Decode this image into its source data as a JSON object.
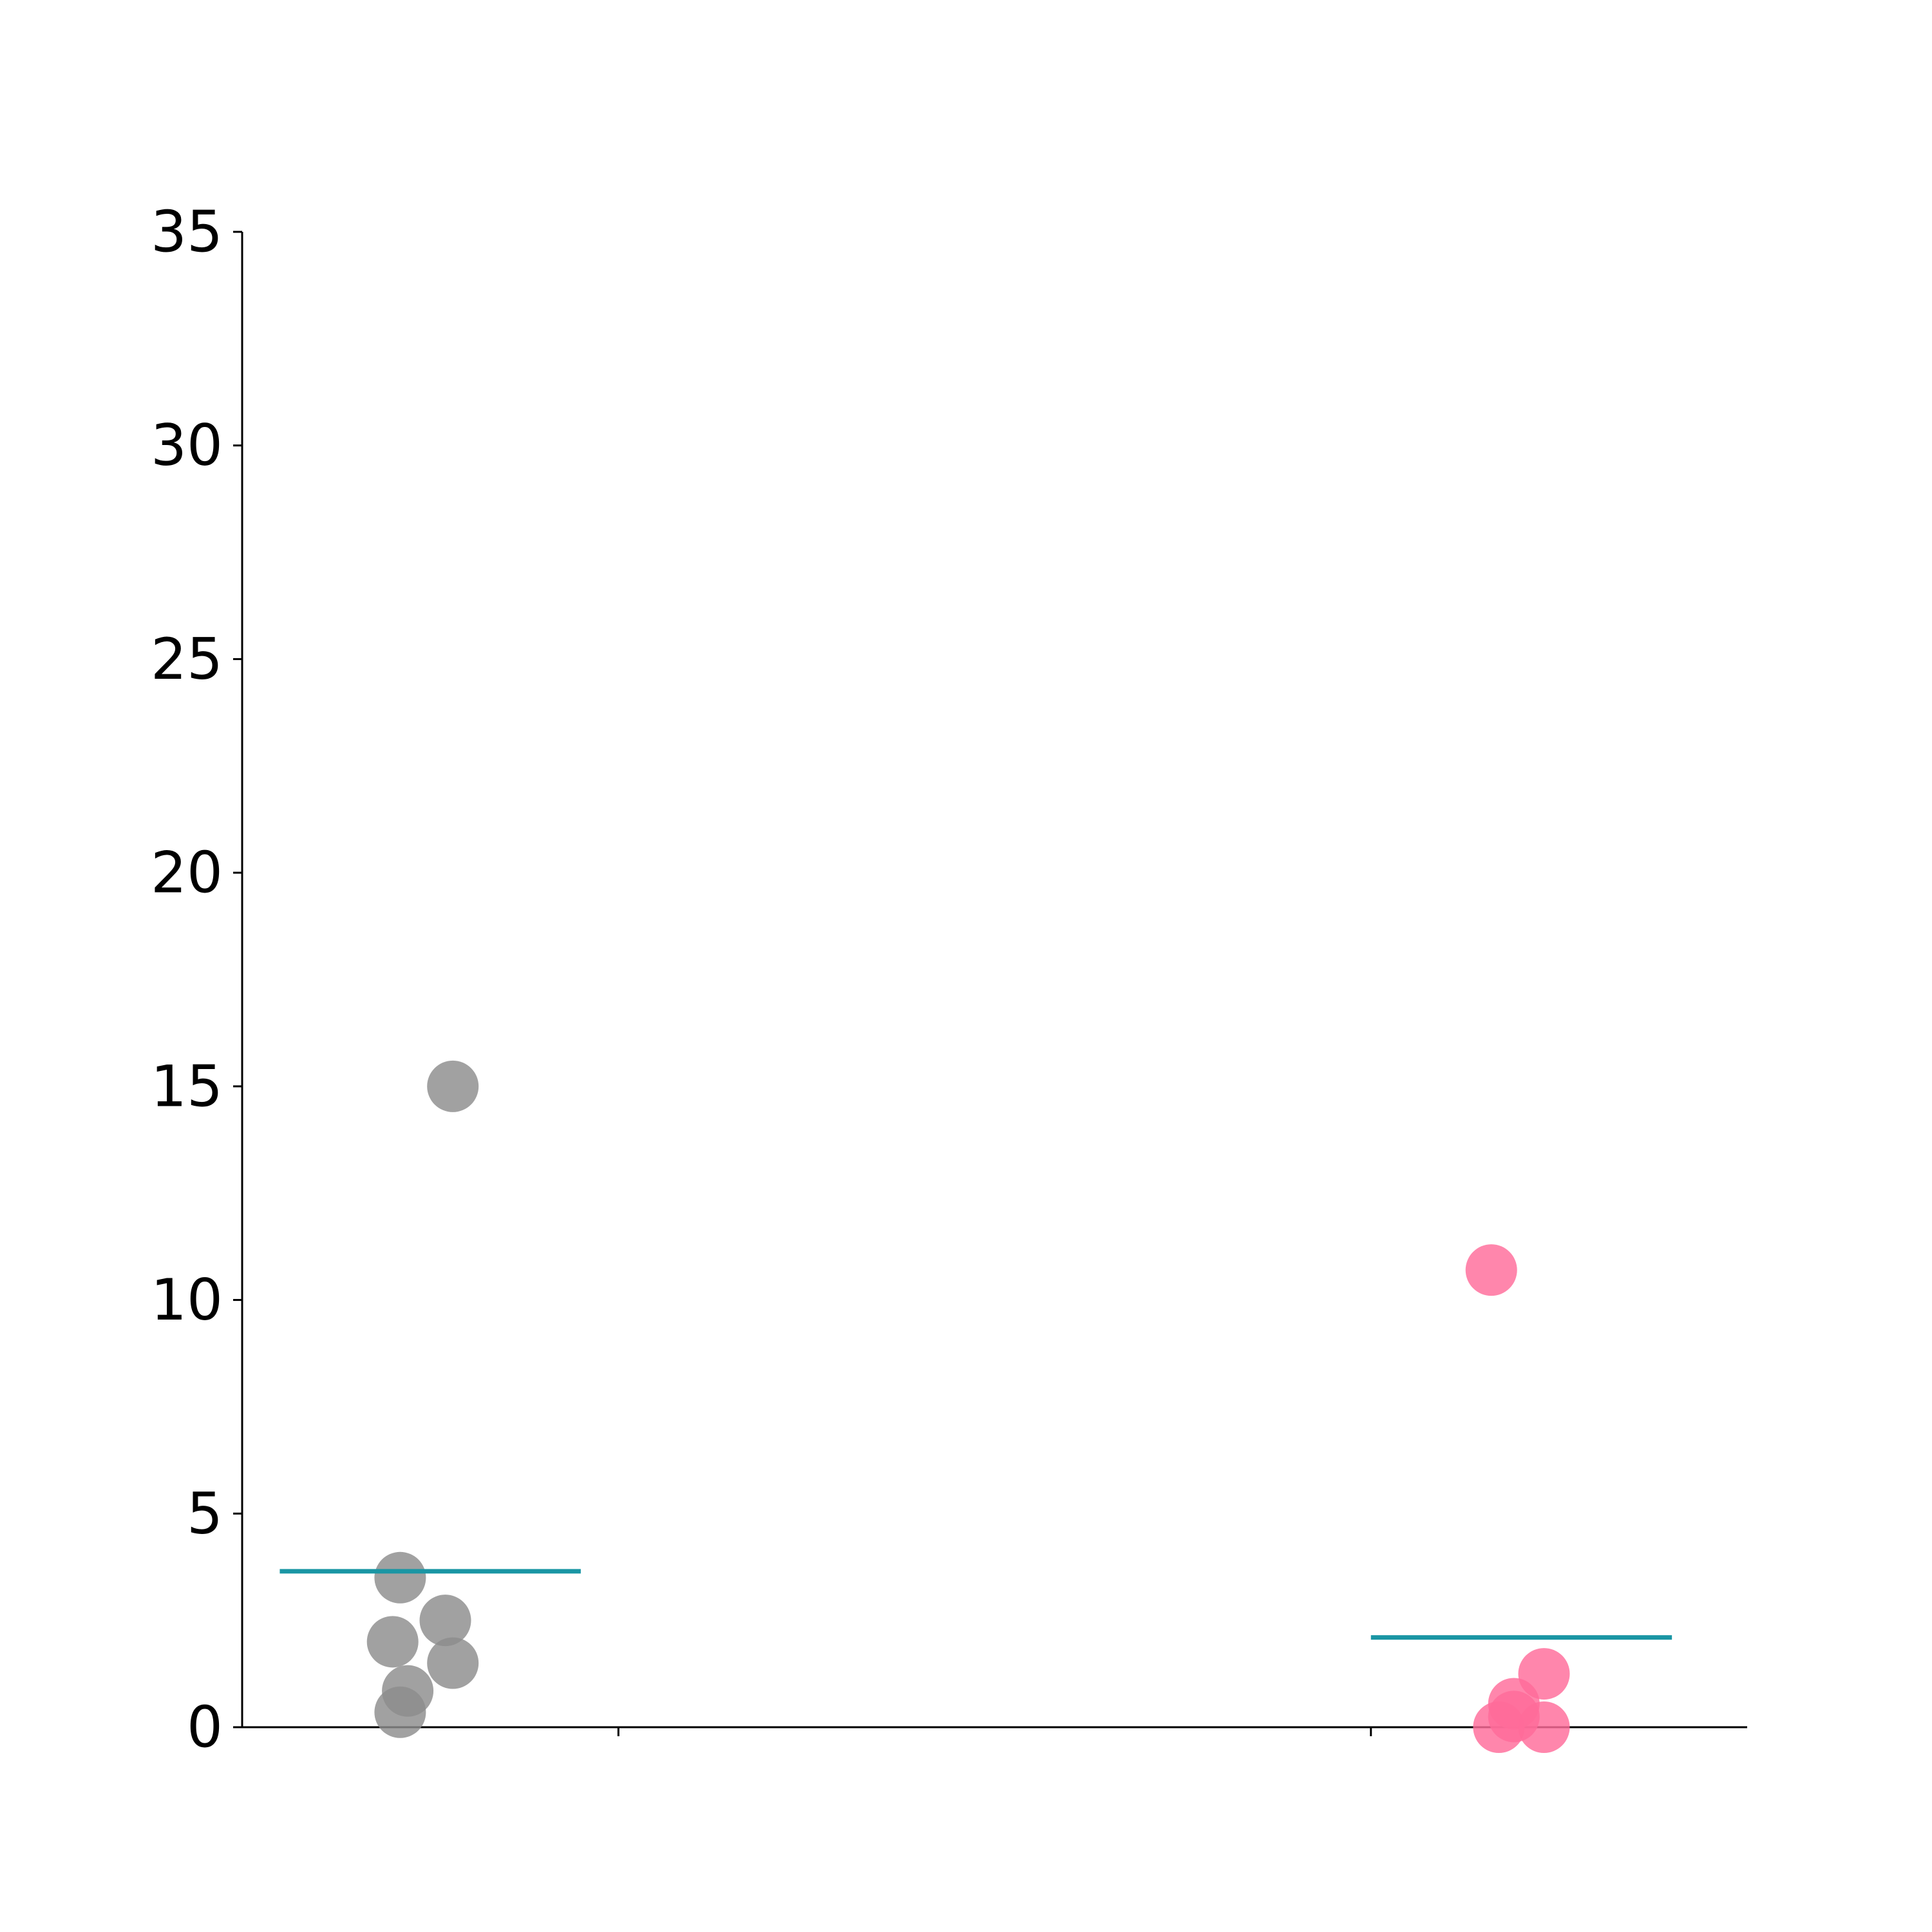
{
  "chart_data": {
    "type": "scatter",
    "title": "",
    "xlabel": "",
    "ylabel": "",
    "ylim": [
      0,
      35
    ],
    "y_ticks": [
      0,
      5,
      10,
      15,
      20,
      25,
      30,
      35
    ],
    "y_tick_labels": [
      "0",
      "5",
      "10",
      "15",
      "20",
      "25",
      "30",
      "35"
    ],
    "categories": [
      "",
      ""
    ],
    "grid": false,
    "series": [
      {
        "category_index": 0,
        "color": "#8c8c8c",
        "points": [
          {
            "x": -0.22,
            "y": 15.0
          },
          {
            "x": -0.29,
            "y": 3.5
          },
          {
            "x": -0.23,
            "y": 2.5
          },
          {
            "x": -0.3,
            "y": 2.0
          },
          {
            "x": -0.22,
            "y": 1.5
          },
          {
            "x": -0.28,
            "y": 0.85
          },
          {
            "x": -0.29,
            "y": 0.35
          }
        ],
        "mean": 3.65
      },
      {
        "category_index": 1,
        "color": "#ff6b9a",
        "points": [
          {
            "x": 0.16,
            "y": 10.7
          },
          {
            "x": 0.23,
            "y": 1.25
          },
          {
            "x": 0.19,
            "y": 0.55
          },
          {
            "x": 0.19,
            "y": 0.25
          },
          {
            "x": 0.17,
            "y": 0.0
          },
          {
            "x": 0.23,
            "y": 0.0
          }
        ],
        "mean": 2.1
      }
    ],
    "mean_line_color": "#1a96a4"
  }
}
